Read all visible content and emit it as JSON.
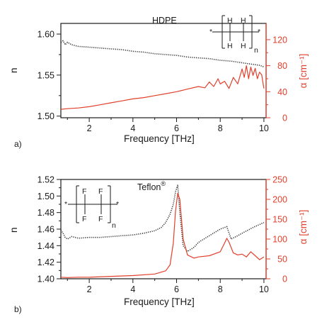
{
  "colors": {
    "n_series": "#333333",
    "alpha_series": "#e2402c",
    "axis": "#1a1a1a"
  },
  "chart_data": [
    {
      "type": "line",
      "panel_label": "a)",
      "title": "HDPE",
      "xlabel": "Frequency [THz]",
      "ylabel": "n",
      "ylabel_right": "α [cm⁻¹]",
      "xlim": [
        0.7,
        10.1
      ],
      "ylim": [
        1.498,
        1.613
      ],
      "ylim_right": [
        0,
        145
      ],
      "x_ticks": [
        2,
        4,
        6,
        8,
        10
      ],
      "y_ticks": [
        1.5,
        1.55,
        1.6
      ],
      "y_right_ticks": [
        0,
        40,
        80,
        120
      ],
      "x_tick_labels": [
        "2",
        "4",
        "6",
        "8",
        "10"
      ],
      "y_tick_labels": [
        "1.50",
        "1.55",
        "1.60"
      ],
      "y_right_tick_labels": [
        "0",
        "40",
        "80",
        "120"
      ],
      "structure": {
        "atoms": [
          "H",
          "H",
          "H",
          "H"
        ],
        "subscript": "n"
      },
      "series": [
        {
          "axis": "left",
          "style": "dotted",
          "x": [
            0.7,
            0.8,
            0.9,
            1.0,
            1.2,
            1.5,
            2.0,
            2.5,
            3.0,
            3.5,
            4.0,
            4.5,
            5.0,
            5.5,
            6.0,
            6.5,
            7.0,
            7.5,
            8.0,
            8.5,
            9.0,
            9.5,
            9.8,
            10.0
          ],
          "values": [
            1.59,
            1.592,
            1.587,
            1.59,
            1.587,
            1.585,
            1.584,
            1.583,
            1.582,
            1.581,
            1.579,
            1.578,
            1.576,
            1.575,
            1.574,
            1.572,
            1.571,
            1.57,
            1.568,
            1.567,
            1.565,
            1.563,
            1.562,
            1.56
          ]
        },
        {
          "axis": "right",
          "style": "solid",
          "x": [
            0.7,
            1.0,
            1.5,
            2.0,
            2.5,
            3.0,
            3.5,
            4.0,
            4.5,
            5.0,
            5.5,
            6.0,
            6.5,
            7.0,
            7.3,
            7.5,
            7.7,
            7.9,
            8.0,
            8.2,
            8.4,
            8.6,
            8.8,
            9.0,
            9.1,
            9.2,
            9.3,
            9.4,
            9.5,
            9.6,
            9.7,
            9.8,
            9.9,
            10.0
          ],
          "values": [
            13,
            14,
            15,
            17,
            20,
            23,
            26,
            29,
            31,
            34,
            37,
            40,
            44,
            48,
            46,
            55,
            48,
            60,
            52,
            56,
            45,
            62,
            52,
            75,
            62,
            80,
            60,
            78,
            65,
            76,
            60,
            70,
            66,
            45
          ]
        }
      ]
    },
    {
      "type": "line",
      "panel_label": "b)",
      "title": "Teflon",
      "title_sup": "®",
      "xlabel": "Frequency [THz]",
      "ylabel": "n",
      "ylabel_right": "α [cm⁻¹]",
      "xlim": [
        0.7,
        10.1
      ],
      "ylim": [
        1.4,
        1.52
      ],
      "ylim_right": [
        0,
        250
      ],
      "x_ticks": [
        2,
        4,
        6,
        8,
        10
      ],
      "y_ticks": [
        1.4,
        1.42,
        1.44,
        1.46,
        1.48,
        1.5,
        1.52
      ],
      "y_right_ticks": [
        0,
        50,
        100,
        150,
        200,
        250
      ],
      "x_tick_labels": [
        "2",
        "4",
        "6",
        "8",
        "10"
      ],
      "y_tick_labels": [
        "1.40",
        "1.42",
        "1.44",
        "1.46",
        "1.48",
        "1.50",
        "1.52"
      ],
      "y_right_tick_labels": [
        "0",
        "50",
        "100",
        "150",
        "200",
        "250"
      ],
      "structure": {
        "atoms": [
          "F",
          "F",
          "F",
          "F"
        ],
        "subscript": "n"
      },
      "series": [
        {
          "axis": "left",
          "style": "dotted",
          "x": [
            0.7,
            0.8,
            0.9,
            1.0,
            1.2,
            1.5,
            2.0,
            2.5,
            3.0,
            3.5,
            4.0,
            4.5,
            5.0,
            5.3,
            5.5,
            5.7,
            5.85,
            5.95,
            6.05,
            6.15,
            6.3,
            6.5,
            6.8,
            7.0,
            7.5,
            8.0,
            8.3,
            8.5,
            8.8,
            9.0,
            9.5,
            10.0
          ],
          "values": [
            1.459,
            1.455,
            1.45,
            1.448,
            1.451,
            1.449,
            1.45,
            1.45,
            1.451,
            1.452,
            1.453,
            1.455,
            1.458,
            1.462,
            1.468,
            1.478,
            1.49,
            1.505,
            1.513,
            1.48,
            1.44,
            1.433,
            1.438,
            1.444,
            1.452,
            1.46,
            1.463,
            1.448,
            1.452,
            1.455,
            1.462,
            1.468
          ]
        },
        {
          "axis": "right",
          "style": "solid",
          "x": [
            0.7,
            1.0,
            1.5,
            2.0,
            3.0,
            4.0,
            5.0,
            5.5,
            5.7,
            5.85,
            5.95,
            6.05,
            6.15,
            6.3,
            6.5,
            6.8,
            7.0,
            7.5,
            8.0,
            8.2,
            8.3,
            8.4,
            8.6,
            8.8,
            9.0,
            9.2,
            9.4,
            9.6,
            9.8,
            10.0
          ],
          "values": [
            4,
            3,
            4,
            4,
            6,
            8,
            12,
            20,
            35,
            90,
            170,
            215,
            200,
            100,
            60,
            52,
            55,
            58,
            68,
            90,
            102,
            92,
            65,
            60,
            62,
            55,
            68,
            58,
            48,
            55
          ]
        }
      ]
    }
  ]
}
